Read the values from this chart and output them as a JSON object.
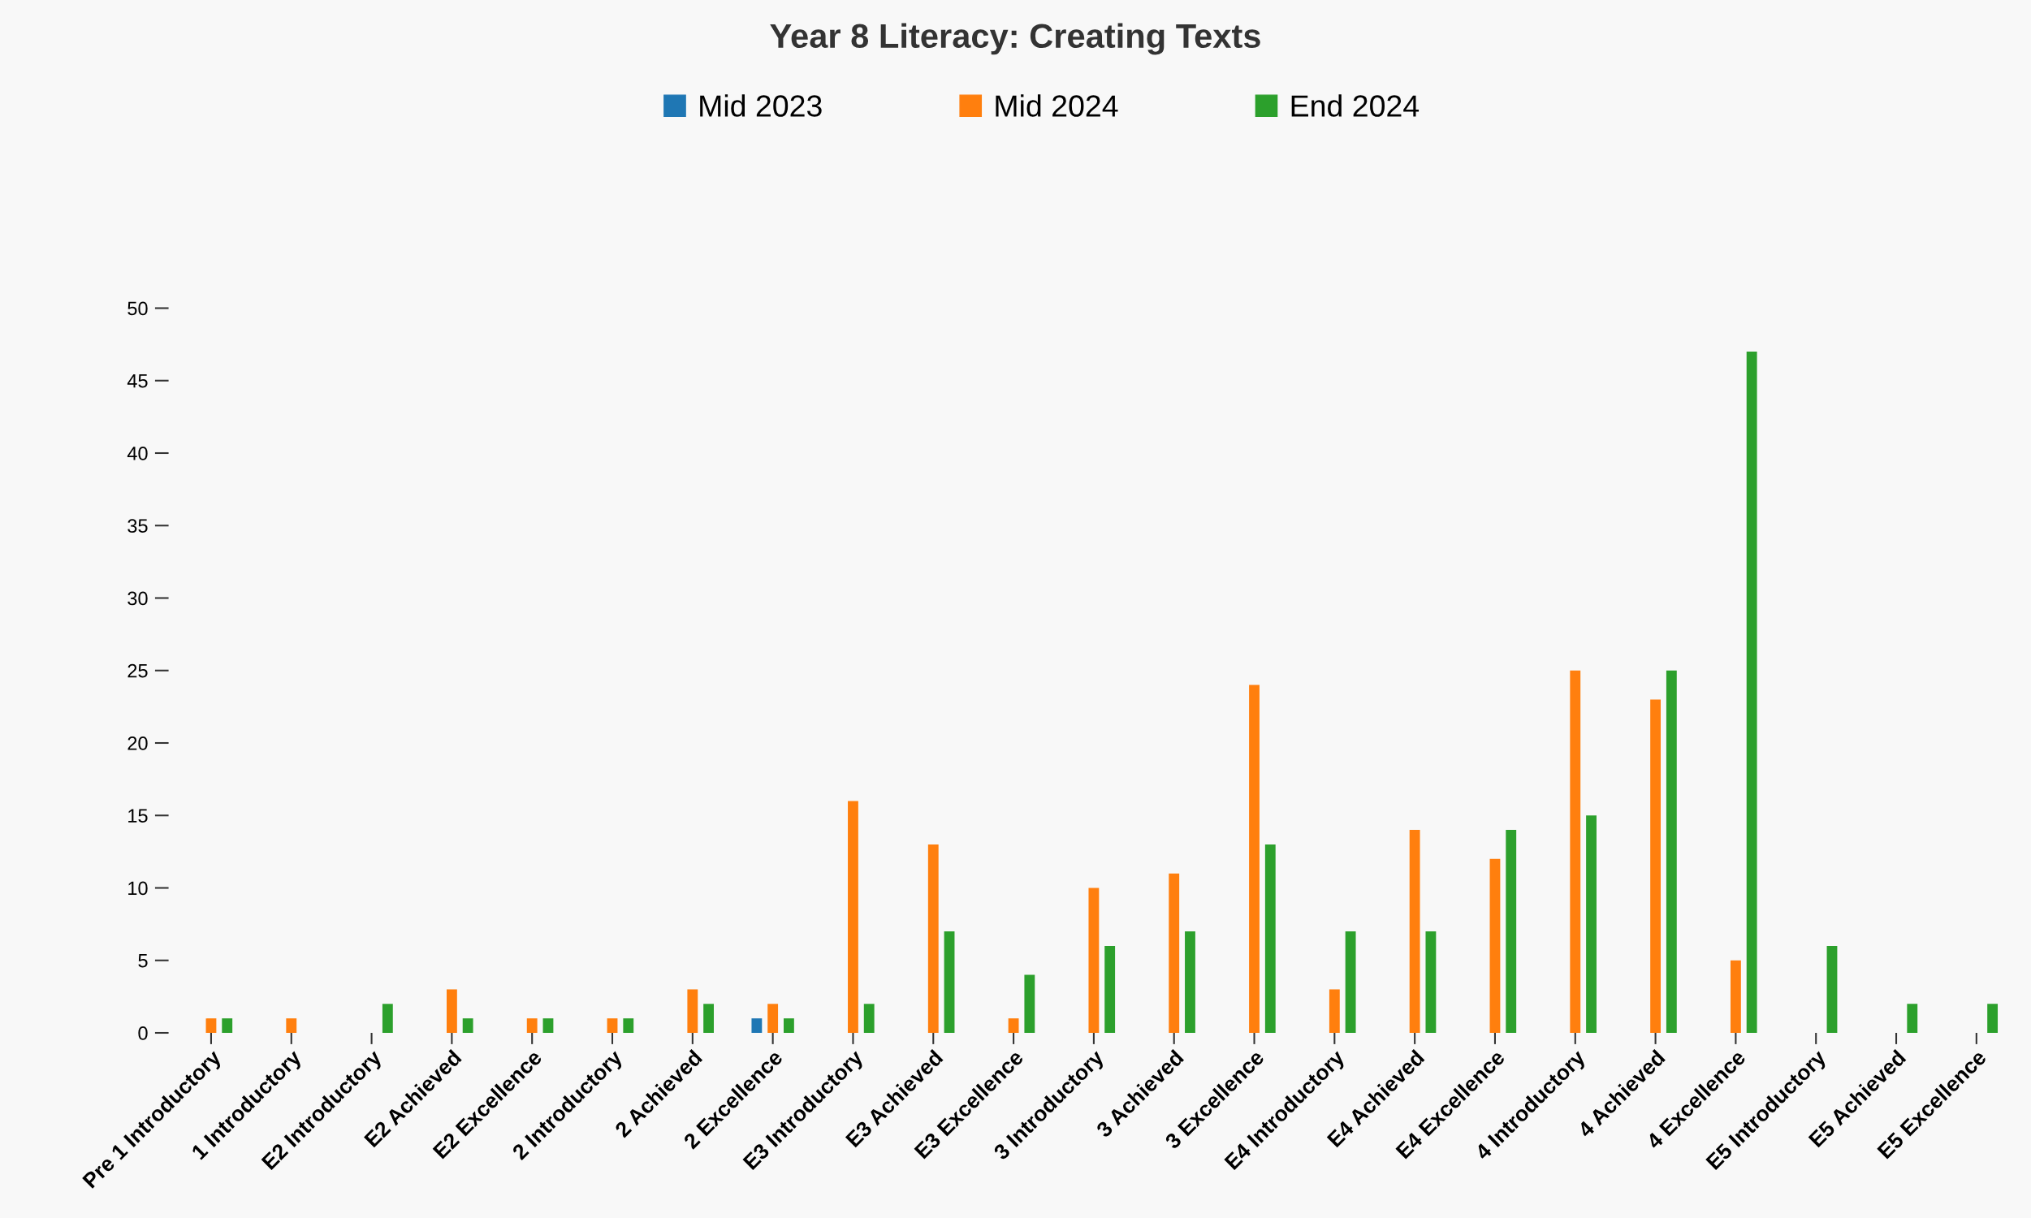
{
  "chart_data": {
    "type": "bar",
    "title": "Year 8 Literacy: Creating Texts",
    "categories": [
      "Pre 1 Introductory",
      "1 Introductory",
      "E2 Introductory",
      "E2 Achieved",
      "E2 Excellence",
      "2 Introductory",
      "2 Achieved",
      "2 Excellence",
      "E3 Introductory",
      "E3 Achieved",
      "E3 Excellence",
      "3 Introductory",
      "3 Achieved",
      "3 Excellence",
      "E4 Introductory",
      "E4 Achieved",
      "E4 Excellence",
      "4 Introductory",
      "4 Achieved",
      "4 Excellence",
      "E5 Introductory",
      "E5 Achieved",
      "E5 Excellence"
    ],
    "series": [
      {
        "name": "Mid 2023",
        "color": "#1f77b4",
        "values": [
          0,
          0,
          0,
          0,
          0,
          0,
          0,
          1,
          0,
          0,
          0,
          0,
          0,
          0,
          0,
          0,
          0,
          0,
          0,
          0,
          0,
          0,
          0
        ]
      },
      {
        "name": "Mid 2024",
        "color": "#ff7f0e",
        "values": [
          1,
          1,
          0,
          3,
          1,
          1,
          3,
          2,
          16,
          13,
          1,
          10,
          11,
          24,
          3,
          14,
          12,
          25,
          23,
          5,
          0,
          0,
          0
        ]
      },
      {
        "name": "End 2024",
        "color": "#2ca02c",
        "values": [
          1,
          0,
          2,
          1,
          1,
          1,
          2,
          1,
          2,
          7,
          4,
          6,
          7,
          13,
          7,
          7,
          14,
          15,
          25,
          47,
          6,
          2,
          2
        ]
      }
    ],
    "ylim": [
      0,
      50
    ],
    "yticks": [
      0,
      5,
      10,
      15,
      20,
      25,
      30,
      35,
      40,
      45,
      50
    ],
    "grid": false,
    "legend": "top"
  }
}
